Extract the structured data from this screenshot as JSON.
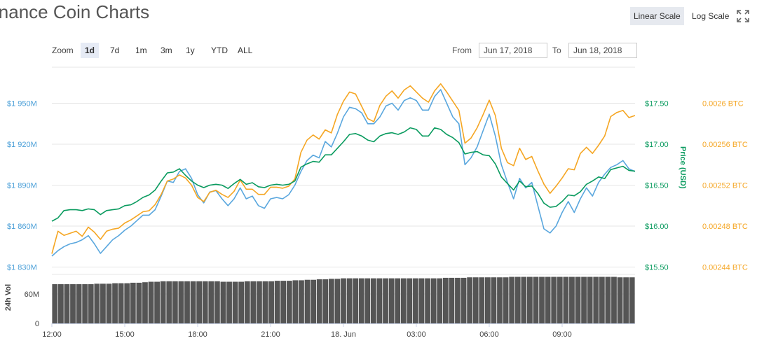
{
  "header": {
    "title": "inance Coin Charts",
    "linear_scale_label": "Linear Scale",
    "log_scale_label": "Log Scale",
    "fullscreen_icon": "expand-icon"
  },
  "toolbar": {
    "zoom_label": "Zoom",
    "zoom_options": [
      "1d",
      "7d",
      "1m",
      "3m",
      "1y",
      "YTD",
      "ALL"
    ],
    "zoom_selected": "1d",
    "from_label": "From",
    "from_value": "Jun 17, 2018",
    "to_label": "To",
    "to_value": "Jun 18, 2018"
  },
  "chart_data": {
    "type": "line",
    "x_ticks": [
      "12:00",
      "15:00",
      "18:00",
      "21:00",
      "18. Jun",
      "03:00",
      "06:00",
      "09:00"
    ],
    "y_left": {
      "ticks": [
        "$1 830M",
        "$1 860M",
        "$1 890M",
        "$1 920M",
        "$1 950M"
      ],
      "values": [
        1830,
        1860,
        1890,
        1920,
        1950
      ],
      "unit": "M"
    },
    "y_right_usd": {
      "label": "Price (USD)",
      "ticks": [
        "$15.50",
        "$16.00",
        "$16.50",
        "$17.00",
        "$17.50"
      ],
      "values": [
        15.5,
        16.0,
        16.5,
        17.0,
        17.5
      ]
    },
    "y_right_btc": {
      "ticks": [
        "0.00244 BTC",
        "0.00248 BTC",
        "0.00252 BTC",
        "0.00256 BTC",
        "0.0026 BTC"
      ],
      "values": [
        0.00244,
        0.00248,
        0.00252,
        0.00256,
        0.0026
      ]
    },
    "series": [
      {
        "color": "#5aa7de",
        "axis": "market_cap",
        "x": [
          0,
          0.25,
          0.5,
          0.75,
          1,
          1.25,
          1.5,
          1.75,
          2,
          2.25,
          2.5,
          2.75,
          3,
          3.25,
          3.5,
          3.75,
          4,
          4.25,
          4.5,
          4.75,
          5,
          5.25,
          5.5,
          5.75,
          6,
          6.25,
          6.5,
          6.75,
          7,
          7.25,
          7.5,
          7.75,
          8,
          8.25,
          8.5,
          8.75,
          9,
          9.25,
          9.5,
          9.75,
          10,
          10.25,
          10.5,
          10.75,
          11,
          11.25,
          11.5,
          11.75,
          12,
          12.25,
          12.5,
          12.75,
          13,
          13.25,
          13.5,
          13.75,
          14,
          14.25,
          14.5,
          14.75,
          15,
          15.25,
          15.5,
          15.75,
          16,
          16.25,
          16.5,
          16.75,
          17,
          17.25,
          17.5,
          17.75,
          18,
          18.25,
          18.5,
          18.75,
          19,
          19.25,
          19.5,
          19.75,
          20,
          20.25,
          20.5,
          20.75,
          21,
          21.25,
          21.5,
          21.75,
          22,
          22.25,
          22.5,
          22.75,
          23,
          23.25,
          23.5,
          23.75,
          24
        ],
        "values": [
          1838,
          1842,
          1845,
          1847,
          1848,
          1850,
          1853,
          1847,
          1840,
          1845,
          1850,
          1853,
          1857,
          1860,
          1864,
          1868,
          1868,
          1872,
          1882,
          1893,
          1892,
          1900,
          1902,
          1895,
          1883,
          1877,
          1885,
          1886,
          1880,
          1875,
          1880,
          1888,
          1880,
          1882,
          1875,
          1873,
          1880,
          1881,
          1880,
          1883,
          1890,
          1900,
          1908,
          1912,
          1910,
          1922,
          1918,
          1928,
          1940,
          1947,
          1946,
          1943,
          1935,
          1935,
          1940,
          1948,
          1950,
          1945,
          1952,
          1954,
          1952,
          1945,
          1945,
          1955,
          1960,
          1950,
          1940,
          1935,
          1905,
          1910,
          1918,
          1930,
          1942,
          1926,
          1905,
          1892,
          1880,
          1895,
          1888,
          1892,
          1875,
          1858,
          1855,
          1860,
          1870,
          1878,
          1870,
          1880,
          1888,
          1882,
          1892,
          1898,
          1903,
          1905,
          1908,
          1902,
          1900
        ]
      },
      {
        "color": "#f5a623",
        "axis": "btc",
        "x": [
          0,
          0.25,
          0.5,
          0.75,
          1,
          1.25,
          1.5,
          1.75,
          2,
          2.25,
          2.5,
          2.75,
          3,
          3.25,
          3.5,
          3.75,
          4,
          4.25,
          4.5,
          4.75,
          5,
          5.25,
          5.5,
          5.75,
          6,
          6.25,
          6.5,
          6.75,
          7,
          7.25,
          7.5,
          7.75,
          8,
          8.25,
          8.5,
          8.75,
          9,
          9.25,
          9.5,
          9.75,
          10,
          10.25,
          10.5,
          10.75,
          11,
          11.25,
          11.5,
          11.75,
          12,
          12.25,
          12.5,
          12.75,
          13,
          13.25,
          13.5,
          13.75,
          14,
          14.25,
          14.5,
          14.75,
          15,
          15.25,
          15.5,
          15.75,
          16,
          16.25,
          16.5,
          16.75,
          17,
          17.25,
          17.5,
          17.75,
          18,
          18.25,
          18.5,
          18.75,
          19,
          19.25,
          19.5,
          19.75,
          20,
          20.25,
          20.5,
          20.75,
          21,
          21.25,
          21.5,
          21.75,
          22,
          22.25,
          22.5,
          22.75,
          23,
          23.25,
          23.5,
          23.75,
          24
        ],
        "values": [
          0.002453,
          0.002475,
          0.002471,
          0.002473,
          0.002475,
          0.00247,
          0.002479,
          0.002474,
          0.002467,
          0.002475,
          0.002477,
          0.002478,
          0.002483,
          0.002486,
          0.00249,
          0.002494,
          0.002495,
          0.002501,
          0.002511,
          0.002524,
          0.002526,
          0.00253,
          0.002527,
          0.00252,
          0.002508,
          0.002504,
          0.002513,
          0.002515,
          0.002511,
          0.002508,
          0.002514,
          0.002525,
          0.002516,
          0.002516,
          0.002511,
          0.002511,
          0.002518,
          0.002518,
          0.002517,
          0.002519,
          0.002526,
          0.002552,
          0.002564,
          0.002569,
          0.002565,
          0.002574,
          0.002571,
          0.002589,
          0.002602,
          0.002611,
          0.002609,
          0.002597,
          0.002585,
          0.002582,
          0.002598,
          0.002607,
          0.002612,
          0.002605,
          0.002613,
          0.002617,
          0.002611,
          0.002605,
          0.002601,
          0.002612,
          0.002619,
          0.002611,
          0.002602,
          0.002593,
          0.002561,
          0.002566,
          0.002576,
          0.002589,
          0.002603,
          0.002588,
          0.002556,
          0.002542,
          0.002539,
          0.002556,
          0.002545,
          0.002548,
          0.002534,
          0.002521,
          0.002512,
          0.002519,
          0.002527,
          0.002536,
          0.002535,
          0.002551,
          0.002557,
          0.002551,
          0.002559,
          0.002568,
          0.002587,
          0.002591,
          0.002593,
          0.002586,
          0.002588
        ]
      },
      {
        "color": "#0a9b5f",
        "axis": "usd",
        "x": [
          0,
          0.25,
          0.5,
          0.75,
          1,
          1.25,
          1.5,
          1.75,
          2,
          2.25,
          2.5,
          2.75,
          3,
          3.25,
          3.5,
          3.75,
          4,
          4.25,
          4.5,
          4.75,
          5,
          5.25,
          5.5,
          5.75,
          6,
          6.25,
          6.5,
          6.75,
          7,
          7.25,
          7.5,
          7.75,
          8,
          8.25,
          8.5,
          8.75,
          9,
          9.25,
          9.5,
          9.75,
          10,
          10.25,
          10.5,
          10.75,
          11,
          11.25,
          11.5,
          11.75,
          12,
          12.25,
          12.5,
          12.75,
          13,
          13.25,
          13.5,
          13.75,
          14,
          14.25,
          14.5,
          14.75,
          15,
          15.25,
          15.5,
          15.75,
          16,
          16.25,
          16.5,
          16.75,
          17,
          17.25,
          17.5,
          17.75,
          18,
          18.25,
          18.5,
          18.75,
          19,
          19.25,
          19.5,
          19.75,
          20,
          20.25,
          20.5,
          20.75,
          21,
          21.25,
          21.5,
          21.75,
          22,
          22.25,
          22.5,
          22.75,
          23,
          23.25,
          23.5,
          23.75,
          24
        ],
        "values": [
          16.06,
          16.1,
          16.19,
          16.2,
          16.2,
          16.19,
          16.21,
          16.2,
          16.14,
          16.19,
          16.2,
          16.21,
          16.25,
          16.26,
          16.3,
          16.35,
          16.38,
          16.44,
          16.55,
          16.65,
          16.66,
          16.7,
          16.62,
          16.55,
          16.5,
          16.47,
          16.5,
          16.51,
          16.5,
          16.46,
          16.52,
          16.57,
          16.51,
          16.53,
          16.48,
          16.47,
          16.5,
          16.51,
          16.5,
          16.51,
          16.55,
          16.72,
          16.76,
          16.79,
          16.78,
          16.87,
          16.87,
          16.95,
          17.03,
          17.12,
          17.13,
          17.1,
          17.05,
          17.03,
          17.1,
          17.13,
          17.14,
          17.12,
          17.15,
          17.2,
          17.18,
          17.1,
          17.1,
          17.2,
          17.18,
          17.12,
          17.08,
          17.02,
          16.88,
          16.9,
          16.91,
          16.87,
          16.86,
          16.76,
          16.6,
          16.52,
          16.44,
          16.55,
          16.48,
          16.49,
          16.4,
          16.28,
          16.23,
          16.24,
          16.3,
          16.38,
          16.37,
          16.42,
          16.51,
          16.55,
          16.6,
          16.58,
          16.69,
          16.71,
          16.73,
          16.68,
          16.67
        ]
      }
    ],
    "volume": {
      "axis_label": "24h Vol",
      "ticks": [
        "0",
        "60M"
      ],
      "tick_values": [
        0,
        60
      ],
      "values": [
        80,
        80,
        80,
        80,
        80,
        80,
        80,
        81,
        81,
        81,
        82,
        82,
        82,
        83,
        83,
        84,
        85,
        85,
        86,
        86,
        86,
        86,
        86,
        86,
        86,
        86,
        86,
        86,
        85,
        85,
        85,
        85,
        86,
        86,
        86,
        86,
        86,
        87,
        87,
        87,
        88,
        88,
        89,
        89,
        90,
        90,
        91,
        91,
        92,
        92,
        92,
        92,
        92,
        92,
        92,
        92,
        92,
        92,
        92,
        92,
        92,
        92,
        92,
        92,
        92,
        93,
        93,
        93,
        93,
        94,
        94,
        94,
        94,
        94,
        94,
        94,
        95,
        95,
        95,
        95,
        95,
        95,
        95,
        95,
        95,
        95,
        95,
        95,
        95,
        95,
        95,
        95,
        95,
        95,
        94,
        94,
        94
      ]
    },
    "xlim": [
      0,
      24
    ],
    "grid": true
  }
}
